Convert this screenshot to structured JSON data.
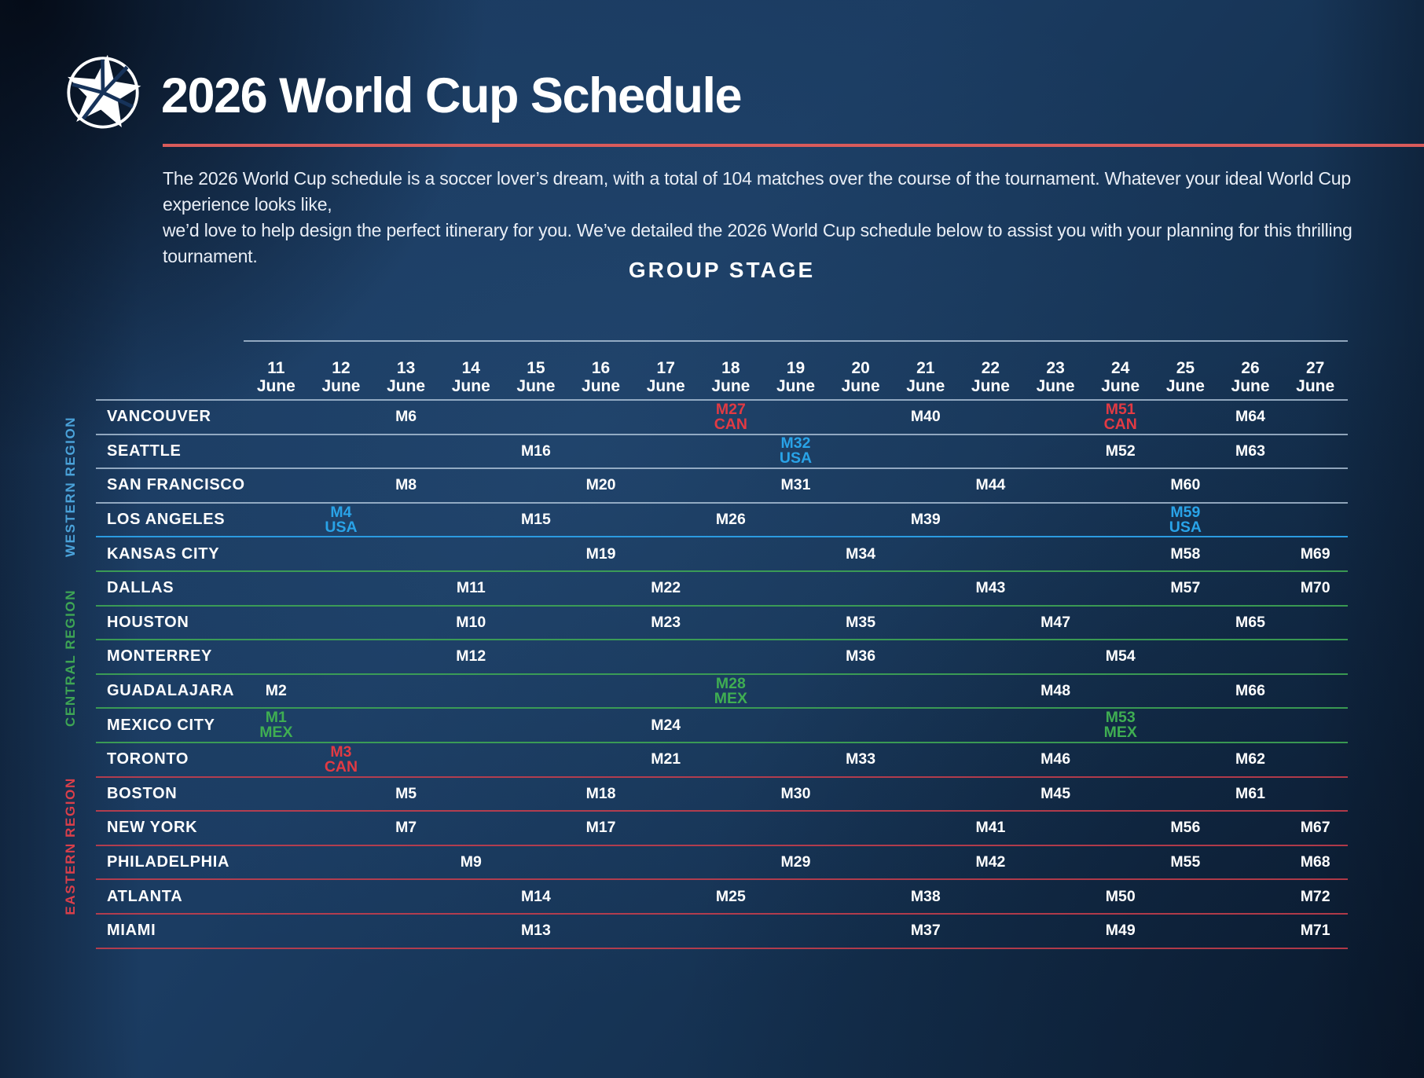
{
  "header": {
    "title": "2026 World Cup Schedule",
    "desc_lines": [
      "The 2026 World Cup schedule is a soccer lover’s dream, with a total of 104 matches over the course of the tournament. Whatever your ideal World Cup experience looks like,",
      "we’d love to help design the perfect itinerary for you. We’ve detailed the 2026 World Cup schedule below to assist you with your planning for this thrilling tournament."
    ],
    "logo_icon": "world-cup-star-logo"
  },
  "stage": {
    "title": "GROUP STAGE"
  },
  "table": {
    "dates": [
      {
        "day": "11",
        "month": "June"
      },
      {
        "day": "12",
        "month": "June"
      },
      {
        "day": "13",
        "month": "June"
      },
      {
        "day": "14",
        "month": "June"
      },
      {
        "day": "15",
        "month": "June"
      },
      {
        "day": "16",
        "month": "June"
      },
      {
        "day": "17",
        "month": "June"
      },
      {
        "day": "18",
        "month": "June"
      },
      {
        "day": "19",
        "month": "June"
      },
      {
        "day": "20",
        "month": "June"
      },
      {
        "day": "21",
        "month": "June"
      },
      {
        "day": "22",
        "month": "June"
      },
      {
        "day": "23",
        "month": "June"
      },
      {
        "day": "24",
        "month": "June"
      },
      {
        "day": "25",
        "month": "June"
      },
      {
        "day": "26",
        "month": "June"
      },
      {
        "day": "27",
        "month": "June"
      }
    ],
    "regions": [
      {
        "id": "western",
        "label": "WESTERN REGION",
        "color": "#4aa2d9",
        "rows": [
          0,
          4
        ]
      },
      {
        "id": "central",
        "label": "CENTRAL REGION",
        "color": "#3ea554",
        "rows": [
          5,
          9
        ]
      },
      {
        "id": "eastern",
        "label": "EASTERN REGION",
        "color": "#da3f4a",
        "rows": [
          10,
          15
        ]
      }
    ],
    "rows": [
      {
        "city": "VANCOUVER",
        "region": "western",
        "line": "pale",
        "matches": {
          "13": {
            "m": "M6"
          },
          "18": {
            "m": "M27",
            "team": "CAN",
            "color": "red"
          },
          "21": {
            "m": "M40"
          },
          "24": {
            "m": "M51",
            "team": "CAN",
            "color": "red"
          },
          "26": {
            "m": "M64"
          }
        }
      },
      {
        "city": "SEATTLE",
        "region": "western",
        "line": "pale",
        "matches": {
          "15": {
            "m": "M16"
          },
          "19": {
            "m": "M32",
            "team": "USA",
            "color": "blue"
          },
          "24": {
            "m": "M52"
          },
          "26": {
            "m": "M63"
          }
        }
      },
      {
        "city": "SAN FRANCISCO",
        "region": "western",
        "line": "pale",
        "matches": {
          "13": {
            "m": "M8"
          },
          "16": {
            "m": "M20"
          },
          "19": {
            "m": "M31"
          },
          "22": {
            "m": "M44"
          },
          "25": {
            "m": "M60"
          }
        }
      },
      {
        "city": "LOS ANGELES",
        "region": "western",
        "line": "blue",
        "matches": {
          "12": {
            "m": "M4",
            "team": "USA",
            "color": "blue"
          },
          "15": {
            "m": "M15"
          },
          "18": {
            "m": "M26"
          },
          "21": {
            "m": "M39"
          },
          "25": {
            "m": "M59",
            "team": "USA",
            "color": "blue"
          }
        }
      },
      {
        "city": "KANSAS CITY",
        "region": "western",
        "line": "green",
        "matches": {
          "16": {
            "m": "M19"
          },
          "20": {
            "m": "M34"
          },
          "25": {
            "m": "M58"
          },
          "27": {
            "m": "M69"
          }
        }
      },
      {
        "city": "DALLAS",
        "region": "central",
        "line": "green",
        "matches": {
          "14": {
            "m": "M11"
          },
          "17": {
            "m": "M22"
          },
          "22": {
            "m": "M43"
          },
          "25": {
            "m": "M57"
          },
          "27": {
            "m": "M70"
          }
        }
      },
      {
        "city": "HOUSTON",
        "region": "central",
        "line": "green",
        "matches": {
          "14": {
            "m": "M10"
          },
          "17": {
            "m": "M23"
          },
          "20": {
            "m": "M35"
          },
          "23": {
            "m": "M47"
          },
          "26": {
            "m": "M65"
          }
        }
      },
      {
        "city": "MONTERREY",
        "region": "central",
        "line": "green",
        "matches": {
          "14": {
            "m": "M12"
          },
          "20": {
            "m": "M36"
          },
          "24": {
            "m": "M54"
          }
        }
      },
      {
        "city": "GUADALAJARA",
        "region": "central",
        "line": "green",
        "matches": {
          "11": {
            "m": "M2"
          },
          "18": {
            "m": "M28",
            "team": "MEX",
            "color": "green"
          },
          "23": {
            "m": "M48"
          },
          "26": {
            "m": "M66"
          }
        }
      },
      {
        "city": "MEXICO CITY",
        "region": "central",
        "line": "green",
        "matches": {
          "11": {
            "m": "M1",
            "team": "MEX",
            "color": "green"
          },
          "17": {
            "m": "M24"
          },
          "24": {
            "m": "M53",
            "team": "MEX",
            "color": "green"
          }
        }
      },
      {
        "city": "TORONTO",
        "region": "eastern",
        "line": "red",
        "matches": {
          "12": {
            "m": "M3",
            "team": "CAN",
            "color": "red"
          },
          "17": {
            "m": "M21"
          },
          "20": {
            "m": "M33"
          },
          "23": {
            "m": "M46"
          },
          "26": {
            "m": "M62"
          }
        }
      },
      {
        "city": "BOSTON",
        "region": "eastern",
        "line": "red",
        "matches": {
          "13": {
            "m": "M5"
          },
          "16": {
            "m": "M18"
          },
          "19": {
            "m": "M30"
          },
          "23": {
            "m": "M45"
          },
          "26": {
            "m": "M61"
          }
        }
      },
      {
        "city": "NEW YORK",
        "region": "eastern",
        "line": "red",
        "matches": {
          "13": {
            "m": "M7"
          },
          "16": {
            "m": "M17"
          },
          "22": {
            "m": "M41"
          },
          "25": {
            "m": "M56"
          },
          "27": {
            "m": "M67"
          }
        }
      },
      {
        "city": "PHILADELPHIA",
        "region": "eastern",
        "line": "red",
        "matches": {
          "14": {
            "m": "M9"
          },
          "19": {
            "m": "M29"
          },
          "22": {
            "m": "M42"
          },
          "25": {
            "m": "M55"
          },
          "27": {
            "m": "M68"
          }
        }
      },
      {
        "city": "ATLANTA",
        "region": "eastern",
        "line": "red",
        "matches": {
          "15": {
            "m": "M14"
          },
          "18": {
            "m": "M25"
          },
          "21": {
            "m": "M38"
          },
          "24": {
            "m": "M50"
          },
          "27": {
            "m": "M72"
          }
        }
      },
      {
        "city": "MIAMI",
        "region": "eastern",
        "line": "red",
        "matches": {
          "15": {
            "m": "M13"
          },
          "21": {
            "m": "M37"
          },
          "24": {
            "m": "M49"
          },
          "27": {
            "m": "M71"
          }
        }
      }
    ]
  },
  "colors": {
    "accent_red": "#d95b5b",
    "team_red": "#e23a43",
    "team_blue": "#29a3e8",
    "team_green": "#3fae52",
    "line_pale": "rgba(185,205,225,0.75)",
    "line_blue": "#2b9be0",
    "line_green": "rgba(62,165,84,0.9)",
    "line_red": "rgba(205,62,76,0.85)"
  }
}
